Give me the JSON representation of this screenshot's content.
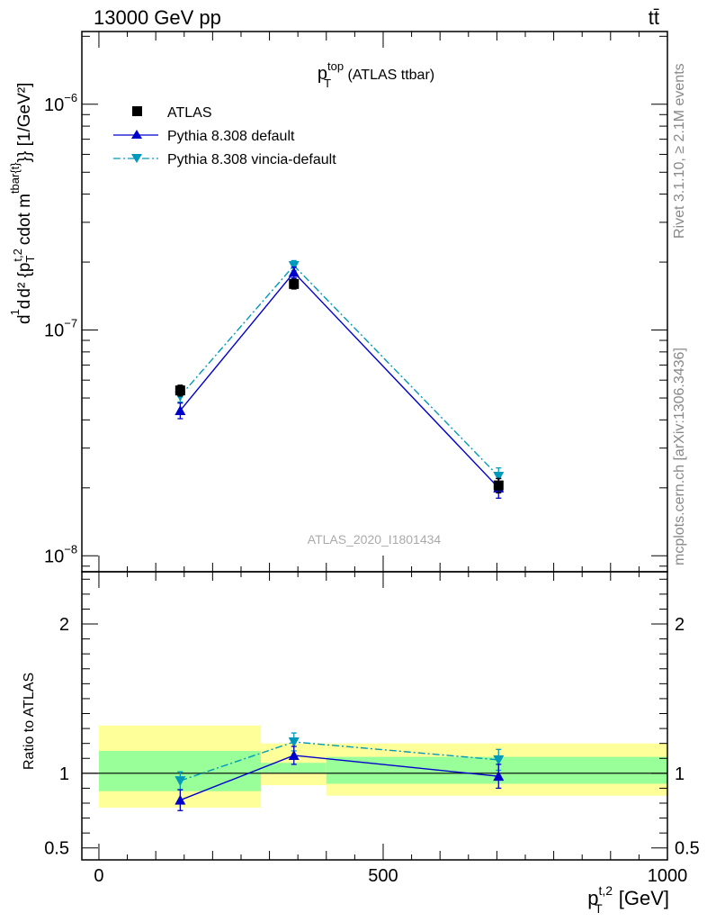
{
  "header": {
    "left": "13000 GeV pp",
    "right": "tt̄"
  },
  "side_labels": {
    "rivet": "Rivet 3.1.10, ≥ 2.1M events",
    "mcplots": "mcplots.cern.ch [arXiv:1306.3436]"
  },
  "chart_data": [
    {
      "panel": "main",
      "type": "line",
      "title": {
        "main": "p",
        "sub": "T",
        "sup": "top",
        "tail": " (ATLAS ttbar)"
      },
      "watermark": "ATLAS_2020_I1801434",
      "ylabel": "d¹/σ dσ / d² {p_T^{t,2} cdot m^{tbar{t}}} [1/GeV²]",
      "yscale": "log",
      "ylim": [
        8.5e-09,
        2.1e-06
      ],
      "xlim": [
        -30,
        1000
      ],
      "y_ticks": [
        {
          "value": 1e-06,
          "base": "10",
          "exp": "−6"
        },
        {
          "value": 1e-07,
          "base": "10",
          "exp": "−7"
        },
        {
          "value": 1e-08,
          "base": "10",
          "exp": "−8"
        }
      ],
      "legend_position": "top-left",
      "series": [
        {
          "name": "ATLAS",
          "marker": "square",
          "color": "#000000",
          "x": [
            143,
            343,
            703
          ],
          "y": [
            5.4e-08,
            1.6e-07,
            2.05e-08
          ],
          "yerr": [
            3e-09,
            8e-09,
            1.5e-09
          ]
        },
        {
          "name": "Pythia 8.308 default",
          "marker": "triangle-up",
          "color": "#0000cc",
          "line": "solid",
          "x": [
            143,
            343,
            703
          ],
          "y": [
            4.4e-08,
            1.8e-07,
            2e-08
          ],
          "yerr": [
            3.5e-09,
            1e-08,
            2e-09
          ]
        },
        {
          "name": "Pythia 8.308 vincia-default",
          "marker": "triangle-down",
          "color": "#0099bb",
          "line": "dashdot",
          "x": [
            143,
            343,
            703
          ],
          "y": [
            5.1e-08,
            1.93e-07,
            2.25e-08
          ],
          "yerr": [
            3e-09,
            1e-08,
            2e-09
          ]
        }
      ]
    },
    {
      "panel": "ratio",
      "type": "line",
      "ylabel": "Ratio to ATLAS",
      "xlabel": {
        "main": "p",
        "sub": "T",
        "sup": "t,2",
        "tail": " [GeV]"
      },
      "ylim": [
        0.42,
        2.35
      ],
      "xlim": [
        -30,
        1000
      ],
      "y_ticks": [
        {
          "value": 0.5,
          "label": "0.5"
        },
        {
          "value": 1,
          "label": "1"
        },
        {
          "value": 2,
          "label": "2"
        }
      ],
      "x_ticks": [
        {
          "value": 0,
          "label": "0"
        },
        {
          "value": 500,
          "label": "500"
        },
        {
          "value": 1000,
          "label": "1000"
        }
      ],
      "bands": [
        {
          "x0": 0,
          "x1": 285,
          "inner": [
            0.88,
            1.15
          ],
          "outer": [
            0.77,
            1.32
          ]
        },
        {
          "x0": 285,
          "x1": 400,
          "inner": [
            1.0,
            1.07
          ],
          "outer": [
            0.92,
            1.2
          ]
        },
        {
          "x0": 400,
          "x1": 1000,
          "inner": [
            0.93,
            1.11
          ],
          "outer": [
            0.85,
            1.2
          ]
        }
      ],
      "band_colors": {
        "inner": "#99ff99",
        "outer": "#ffff99"
      },
      "series": [
        {
          "name": "Pythia 8.308 default",
          "marker": "triangle-up",
          "color": "#0000cc",
          "line": "solid",
          "x": [
            143,
            343,
            703
          ],
          "y": [
            0.82,
            1.12,
            0.98
          ],
          "yerr": [
            0.07,
            0.06,
            0.08
          ]
        },
        {
          "name": "Pythia 8.308 vincia-default",
          "marker": "triangle-down",
          "color": "#0099bb",
          "line": "dashdot",
          "x": [
            143,
            343,
            703
          ],
          "y": [
            0.95,
            1.21,
            1.09
          ],
          "yerr": [
            0.06,
            0.06,
            0.07
          ]
        }
      ]
    }
  ]
}
